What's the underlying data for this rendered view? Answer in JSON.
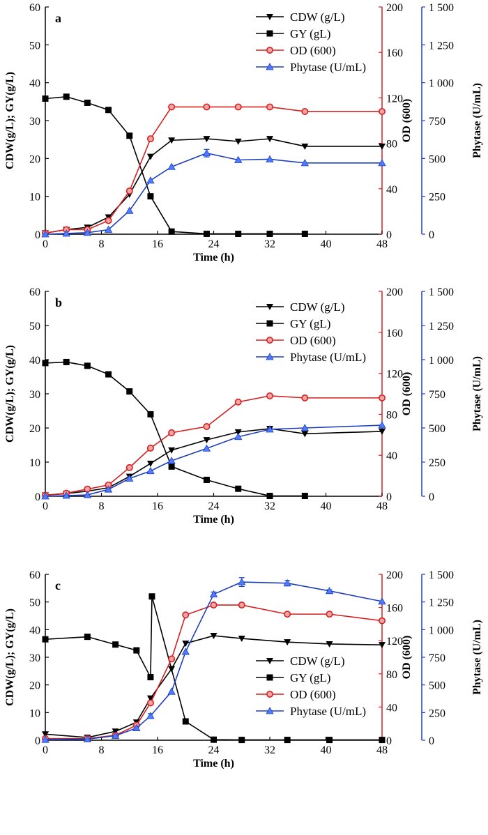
{
  "colors": {
    "cdw": "#000000",
    "gy": "#000000",
    "od": "#d42020",
    "phytase": "#1f3fbf",
    "od_marker_fill": "#f5a3a3",
    "phytase_marker_fill": "#4d7cff",
    "axis_left": "#000000",
    "axis_od": "#d42020",
    "axis_phytase": "#1f3fbf"
  },
  "marker_icons": {
    "cdw": "triangle-down-icon",
    "gy": "square-icon",
    "od": "circle-icon",
    "phytase": "triangle-up-icon"
  },
  "chart_data": [
    {
      "panel": "a",
      "type": "line",
      "xlabel": "Time (h)",
      "ylabel_left": "CDW(g/L); GY(g/L)",
      "ylabel_od": "OD (600)",
      "ylabel_phytase": "Phytase (U/mL)",
      "xlim": [
        0,
        48
      ],
      "ylim_left": [
        0,
        60
      ],
      "ylim_od": [
        0,
        200
      ],
      "ylim_phytase": [
        0,
        1500
      ],
      "x_ticks": [
        "0",
        "8",
        "16",
        "24",
        "32",
        "40",
        "48"
      ],
      "left_ticks": [
        "0",
        "10",
        "20",
        "30",
        "40",
        "50",
        "60"
      ],
      "od_ticks": [
        "0",
        "40",
        "80",
        "120",
        "160",
        "200"
      ],
      "phytase_ticks": [
        "0",
        "250",
        "500",
        "750",
        "1 000",
        "1 250",
        "1 500"
      ],
      "legend_position": "top-right",
      "series": [
        {
          "name": "CDW (g/L)",
          "axis": "left",
          "marker": "triangle-down",
          "x": [
            0,
            3,
            6,
            9,
            12,
            15,
            18,
            23,
            27.5,
            32,
            37,
            48
          ],
          "y": [
            0.3,
            1.2,
            1.8,
            4.5,
            10.5,
            20.5,
            24.8,
            25.2,
            24.5,
            25.2,
            23.2,
            23.2
          ]
        },
        {
          "name": "GY (gL)",
          "axis": "left",
          "marker": "square",
          "x": [
            0,
            3,
            6,
            9,
            12,
            15,
            18,
            23,
            27.5,
            32,
            37
          ],
          "y": [
            35.8,
            36.3,
            34.7,
            32.8,
            26.0,
            10.0,
            0.7,
            0.1,
            0.1,
            0.1,
            0.1
          ]
        },
        {
          "name": "OD (600)",
          "axis": "od",
          "marker": "circle",
          "x": [
            0,
            3,
            6,
            9,
            12,
            15,
            18,
            23,
            27.5,
            32,
            37,
            48
          ],
          "y": [
            1,
            4,
            4,
            12,
            38,
            84,
            112,
            112,
            112,
            112,
            108,
            108
          ]
        },
        {
          "name": "Phytase (U/mL)",
          "axis": "phytase",
          "marker": "triangle-up",
          "x": [
            0,
            3,
            6,
            9,
            12,
            15,
            18,
            23,
            27.5,
            32,
            37,
            48
          ],
          "y": [
            0,
            5,
            10,
            30,
            155,
            355,
            445,
            535,
            490,
            495,
            470,
            470
          ],
          "errors": [
            0,
            0,
            0,
            0,
            0,
            0,
            0,
            25,
            0,
            0,
            0,
            0
          ]
        }
      ]
    },
    {
      "panel": "b",
      "type": "line",
      "xlabel": "Time (h)",
      "ylabel_left": "CDW(g/L); GY(g/L)",
      "ylabel_od": "OD (600)",
      "ylabel_phytase": "Phytase (U/mL)",
      "xlim": [
        0,
        48
      ],
      "ylim_left": [
        0,
        60
      ],
      "ylim_od": [
        0,
        200
      ],
      "ylim_phytase": [
        0,
        1500
      ],
      "x_ticks": [
        "0",
        "8",
        "16",
        "24",
        "32",
        "40",
        "48"
      ],
      "left_ticks": [
        "0",
        "10",
        "20",
        "30",
        "40",
        "50",
        "60"
      ],
      "od_ticks": [
        "0",
        "40",
        "80",
        "120",
        "160",
        "200"
      ],
      "phytase_ticks": [
        "0",
        "250",
        "500",
        "750",
        "1 000",
        "1 250",
        "1 500"
      ],
      "legend_position": "top-right",
      "series": [
        {
          "name": "CDW (g/L)",
          "axis": "left",
          "marker": "triangle-down",
          "x": [
            0,
            3,
            6,
            9,
            12,
            15,
            18,
            23,
            27.5,
            32,
            37,
            48
          ],
          "y": [
            0.3,
            0.8,
            1.5,
            2.5,
            5.8,
            9.6,
            13.5,
            16.5,
            18.8,
            19.8,
            18.3,
            19.0
          ]
        },
        {
          "name": "GY (gL)",
          "axis": "left",
          "marker": "square",
          "x": [
            0,
            3,
            6,
            9,
            12,
            15,
            18,
            23,
            27.5,
            32,
            37
          ],
          "y": [
            39.0,
            39.3,
            38.2,
            35.7,
            30.7,
            24.0,
            8.7,
            4.8,
            2.2,
            0.1,
            0.1
          ]
        },
        {
          "name": "OD (600)",
          "axis": "od",
          "marker": "circle",
          "x": [
            0,
            3,
            6,
            9,
            12,
            15,
            18,
            23,
            27.5,
            32,
            37,
            48
          ],
          "y": [
            1,
            3,
            7,
            11,
            28,
            47,
            62,
            68,
            92,
            98,
            96,
            96
          ]
        },
        {
          "name": "Phytase (U/mL)",
          "axis": "phytase",
          "marker": "triangle-up",
          "x": [
            0,
            3,
            6,
            9,
            12,
            15,
            18,
            23,
            27.5,
            32,
            37,
            48
          ],
          "y": [
            0,
            5,
            10,
            50,
            130,
            185,
            260,
            350,
            435,
            490,
            500,
            520
          ]
        }
      ]
    },
    {
      "panel": "c",
      "type": "line",
      "xlabel": "Time (h)",
      "ylabel_left": "CDW(g/L); GY(g/L)",
      "ylabel_od": "OD (600)",
      "ylabel_phytase": "Phytase (U/mL)",
      "xlim": [
        0,
        48
      ],
      "ylim_left": [
        0,
        60
      ],
      "ylim_od": [
        0,
        200
      ],
      "ylim_phytase": [
        0,
        1500
      ],
      "x_ticks": [
        "0",
        "8",
        "16",
        "24",
        "32",
        "40",
        "48"
      ],
      "left_ticks": [
        "0",
        "10",
        "20",
        "30",
        "40",
        "50",
        "60"
      ],
      "od_ticks": [
        "0",
        "40",
        "80",
        "120",
        "160",
        "200"
      ],
      "phytase_ticks": [
        "0",
        "250",
        "500",
        "750",
        "1 000",
        "1 250",
        "1 500"
      ],
      "legend_position": "bottom-right",
      "series": [
        {
          "name": "CDW (g/L)",
          "axis": "left",
          "marker": "triangle-down",
          "x": [
            0,
            6,
            10,
            13,
            15,
            18,
            20,
            24,
            28,
            34.5,
            40.5,
            48
          ],
          "y": [
            2.2,
            1.0,
            3.2,
            6.5,
            15.2,
            25.8,
            35.0,
            37.8,
            36.8,
            35.5,
            34.8,
            34.5
          ]
        },
        {
          "name": "GY (gL)",
          "axis": "left",
          "marker": "square",
          "x": [
            0,
            6,
            10,
            13,
            15,
            15.2,
            20,
            24,
            28,
            34.5,
            40.5,
            48
          ],
          "y": [
            36.5,
            37.4,
            34.6,
            32.5,
            22.8,
            52.0,
            6.8,
            0.2,
            0.1,
            0.1,
            0.1,
            0.1
          ]
        },
        {
          "name": "OD (600)",
          "axis": "od",
          "marker": "circle",
          "x": [
            0,
            6,
            10,
            13,
            15,
            18,
            20,
            24,
            28,
            34.5,
            40.5,
            48
          ],
          "y": [
            2,
            2,
            6,
            18,
            45,
            98,
            151,
            163,
            163,
            152,
            152,
            144
          ]
        },
        {
          "name": "Phytase (U/mL)",
          "axis": "phytase",
          "marker": "triangle-up",
          "x": [
            0,
            6,
            10,
            13,
            15,
            18,
            20,
            24,
            28,
            34.5,
            40.5,
            48
          ],
          "y": [
            5,
            10,
            40,
            110,
            220,
            440,
            800,
            1320,
            1430,
            1420,
            1350,
            1255
          ],
          "errors": [
            0,
            0,
            0,
            0,
            20,
            0,
            0,
            20,
            40,
            25,
            10,
            0
          ]
        }
      ]
    }
  ]
}
